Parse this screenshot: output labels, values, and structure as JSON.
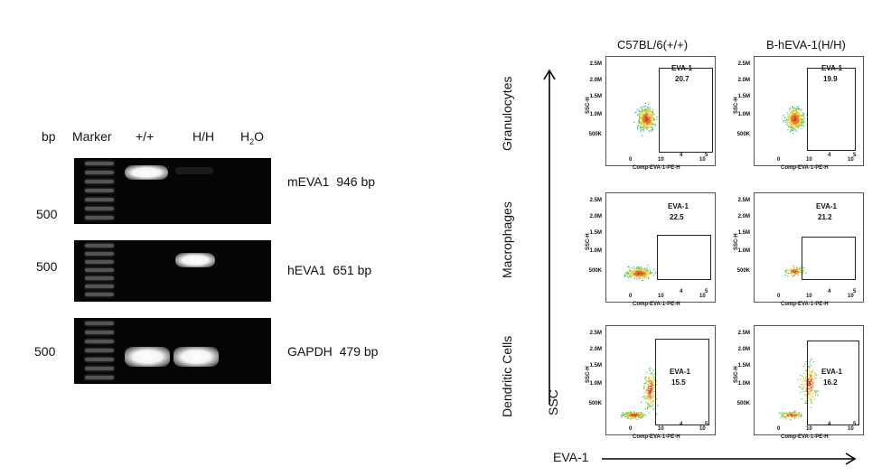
{
  "gel": {
    "headers": {
      "bp": "bp",
      "marker": "Marker",
      "wt": "+/+",
      "hh": "H/H",
      "water_main": "H",
      "water_sub": "2",
      "water_end": "O"
    },
    "size_labels": [
      "500",
      "500",
      "500"
    ],
    "genes": [
      {
        "name": "mEVA1",
        "size": "946 bp"
      },
      {
        "name": "hEVA1",
        "size": "651 bp"
      },
      {
        "name": "GAPDH",
        "size": "479 bp"
      }
    ]
  },
  "flow": {
    "columns": [
      "C57BL/6(+/+)",
      "B-hEVA-1(H/H)"
    ],
    "rows": [
      "Granulocytes",
      "Macrophages",
      "Dendritic Cells"
    ],
    "y_axis_title": "SSC",
    "x_axis_title": "EVA-1",
    "y_ticks": [
      "2.5M",
      "2.0M",
      "1.5M",
      "1.0M",
      "500K"
    ],
    "x_ticks": [
      "0",
      "10",
      "4",
      "10",
      "5"
    ],
    "panel_y_label": "SSC-H",
    "panel_x_label": "Comp-EVA-1-PE-H",
    "gate_name": "EVA-1",
    "panels": [
      {
        "row": 0,
        "col": 0,
        "value": "20.7"
      },
      {
        "row": 0,
        "col": 1,
        "value": "19.9"
      },
      {
        "row": 1,
        "col": 0,
        "value": "22.5"
      },
      {
        "row": 1,
        "col": 1,
        "value": "21.2"
      },
      {
        "row": 2,
        "col": 0,
        "value": "15.5"
      },
      {
        "row": 2,
        "col": 1,
        "value": "16.2"
      }
    ]
  }
}
